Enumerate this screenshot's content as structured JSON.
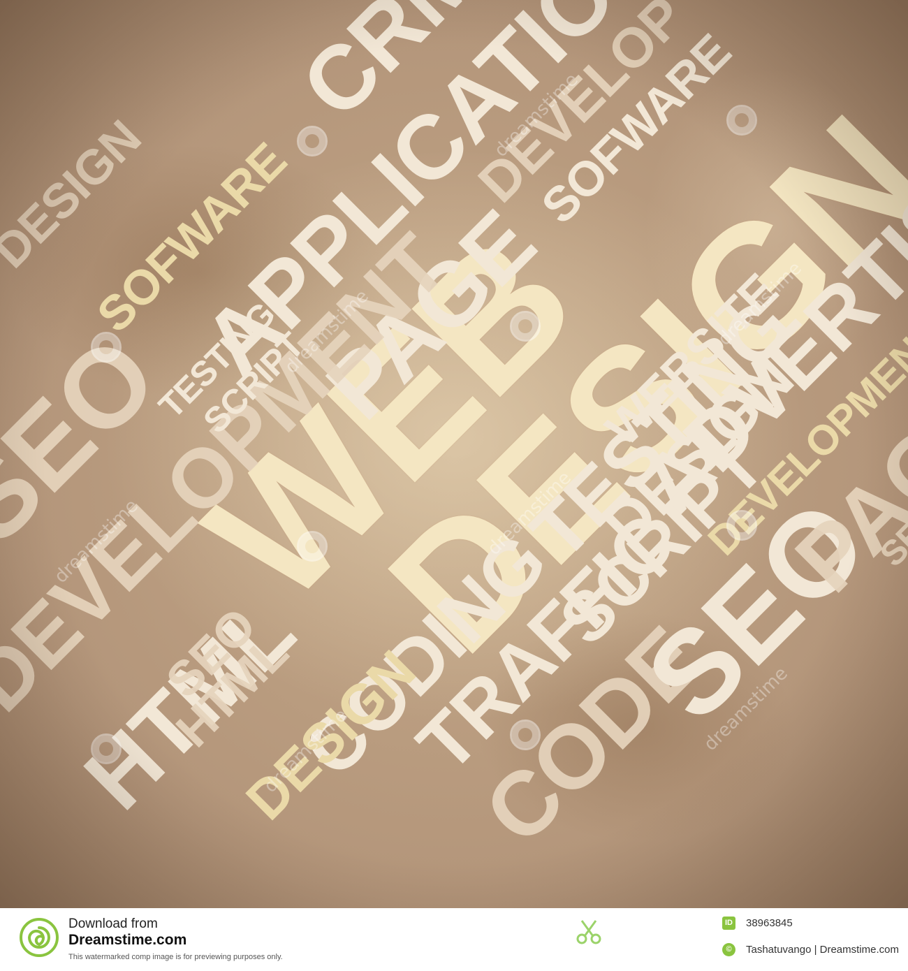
{
  "artwork": {
    "words": [
      "WEB",
      "DESIGN",
      "PAGE",
      "APPLICATION",
      "DEVELOPMENT",
      "SOFWARE",
      "TESTING",
      "SCRIPT",
      "HTML",
      "SEO",
      "CODING",
      "CRM",
      "ADVERTISING",
      "WEBSITE",
      "DEVELOPMENT",
      "CODE",
      "TRAFFIC",
      "SCRIPT",
      "DESIGN",
      "DESIGN",
      "SEO",
      "TESTING",
      "PAGE",
      "DEVELOP",
      "SOFWARE",
      "DESIGN",
      "HTML",
      "SEO",
      "SEO"
    ],
    "watermark_text": "dreamstime",
    "colors": {
      "background": "#b3957a",
      "text": "#f2e7d6",
      "highlight": "#f4e6c2"
    }
  },
  "footer": {
    "logo_icon": "dreamstime-spiral-logo",
    "download_label": "Download from",
    "site_name": "Dreamstime.com",
    "notice": "This watermarked comp image is for previewing purposes only.",
    "scissors_icon": "scissors-icon",
    "id_label": "ID",
    "image_id": "38963845",
    "copyright_symbol": "©",
    "credit": "Tashatuvango | Dreamstime.com",
    "accent_color": "#8ac43f"
  }
}
